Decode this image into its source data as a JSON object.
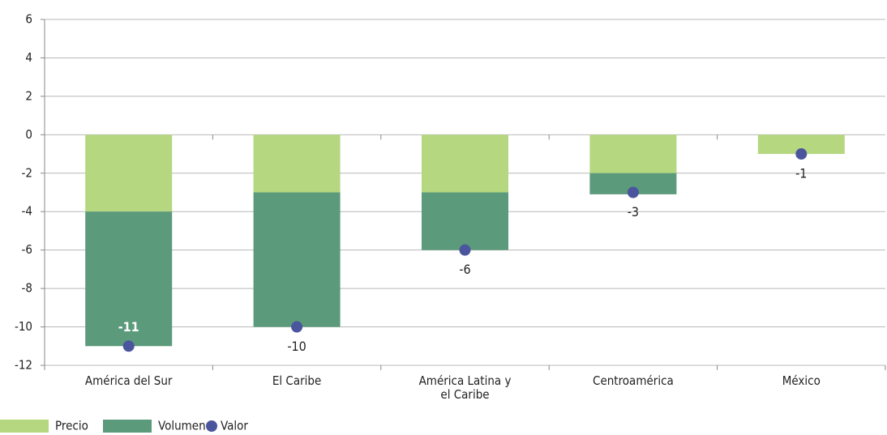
{
  "chart_data": {
    "type": "bar",
    "stacked": true,
    "categories": [
      "América del Sur",
      "El Caribe",
      "América Latina y el Caribe",
      "Centroamérica",
      "México"
    ],
    "series": [
      {
        "name": "Precio",
        "color": "#b5d77f",
        "values": [
          -4,
          -3,
          -3,
          -2,
          -1
        ]
      },
      {
        "name": "Volumen",
        "color": "#5b9a7b",
        "values": [
          -7,
          -7,
          -3,
          -1.1,
          0
        ]
      },
      {
        "name": "Valor",
        "type": "scatter",
        "color": "#4a559e",
        "values": [
          -11,
          -10,
          -6,
          -3,
          -1
        ]
      }
    ],
    "ylim": [
      -12,
      6
    ],
    "yticks": [
      -12,
      -10,
      -8,
      -6,
      -4,
      -2,
      0,
      2,
      4,
      6
    ],
    "grid": true,
    "legend": "bottom-left"
  }
}
